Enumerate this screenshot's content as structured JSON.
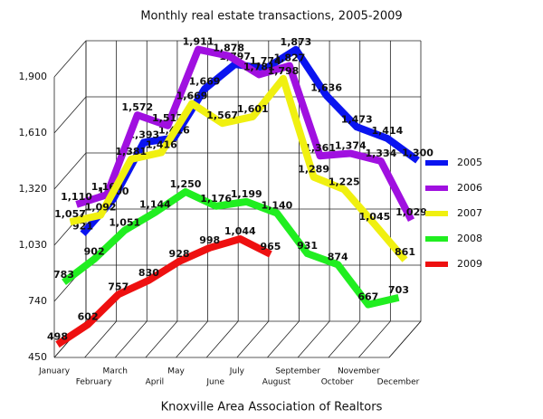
{
  "chart_data": {
    "type": "line3d",
    "title": "Monthly real estate transactions, 2005-2009",
    "x_label": "Knoxville Area Association of Realtors",
    "categories": [
      "January",
      "February",
      "March",
      "April",
      "May",
      "June",
      "July",
      "August",
      "September",
      "October",
      "November",
      "December"
    ],
    "ylim": [
      450,
      1900
    ],
    "yticks": [
      {
        "value": 450,
        "label": "450"
      },
      {
        "value": 740,
        "label": "740"
      },
      {
        "value": 1030,
        "label": "1,030"
      },
      {
        "value": 1320,
        "label": "1,320"
      },
      {
        "value": 1610,
        "label": "1,610"
      },
      {
        "value": 1900,
        "label": "1,900"
      }
    ],
    "grid": true,
    "legend": "right",
    "series": [
      {
        "name": "2005",
        "color": "#0a14f0",
        "values": [
          921,
          1100,
          1393,
          1416,
          1669,
          1797,
          1774,
          1873,
          1636,
          1473,
          1414,
          1300
        ],
        "value_labels": [
          "921",
          "1,100",
          "1,393",
          "1,416",
          "1,669",
          "1,797",
          "1,774",
          "1,873",
          "1,636",
          "1,473",
          "1,414",
          "1,300"
        ]
      },
      {
        "name": "2006",
        "color": "#a010e0",
        "values": [
          1110,
          1160,
          1572,
          1517,
          1911,
          1878,
          1781,
          1827,
          1361,
          1374,
          1334,
          1029
        ],
        "value_labels": [
          "1,110",
          "1,160",
          "1,572",
          "1,517",
          "1,911",
          "1,878",
          "1,781",
          "1,827",
          "1,361",
          "1,374",
          "1,334",
          "1,029"
        ]
      },
      {
        "name": "2007",
        "color": "#f0f010",
        "values": [
          1057,
          1092,
          1381,
          1416,
          1669,
          1567,
          1601,
          1798,
          1289,
          1225,
          1045,
          861
        ],
        "value_labels": [
          "1,057",
          "1,092",
          "1,381",
          "1,416",
          "1,669",
          "1,567",
          "1,601",
          "1,798",
          "1,289",
          "1,225",
          "1,045",
          "861"
        ]
      },
      {
        "name": "2008",
        "color": "#20ee20",
        "values": [
          783,
          902,
          1051,
          1144,
          1250,
          1176,
          1199,
          1140,
          931,
          874,
          667,
          703
        ],
        "value_labels": [
          "783",
          "902",
          "1,051",
          "1,144",
          "1,250",
          "1,176",
          "1,199",
          "1,140",
          "931",
          "874",
          "667",
          "703"
        ]
      },
      {
        "name": "2009",
        "color": "#ee1010",
        "values": [
          498,
          602,
          757,
          830,
          928,
          998,
          1044,
          965,
          null,
          null,
          null,
          null
        ],
        "value_labels": [
          "498",
          "602",
          "757",
          "830",
          "928",
          "998",
          "1,044",
          "965",
          null,
          null,
          null,
          null
        ]
      }
    ]
  }
}
